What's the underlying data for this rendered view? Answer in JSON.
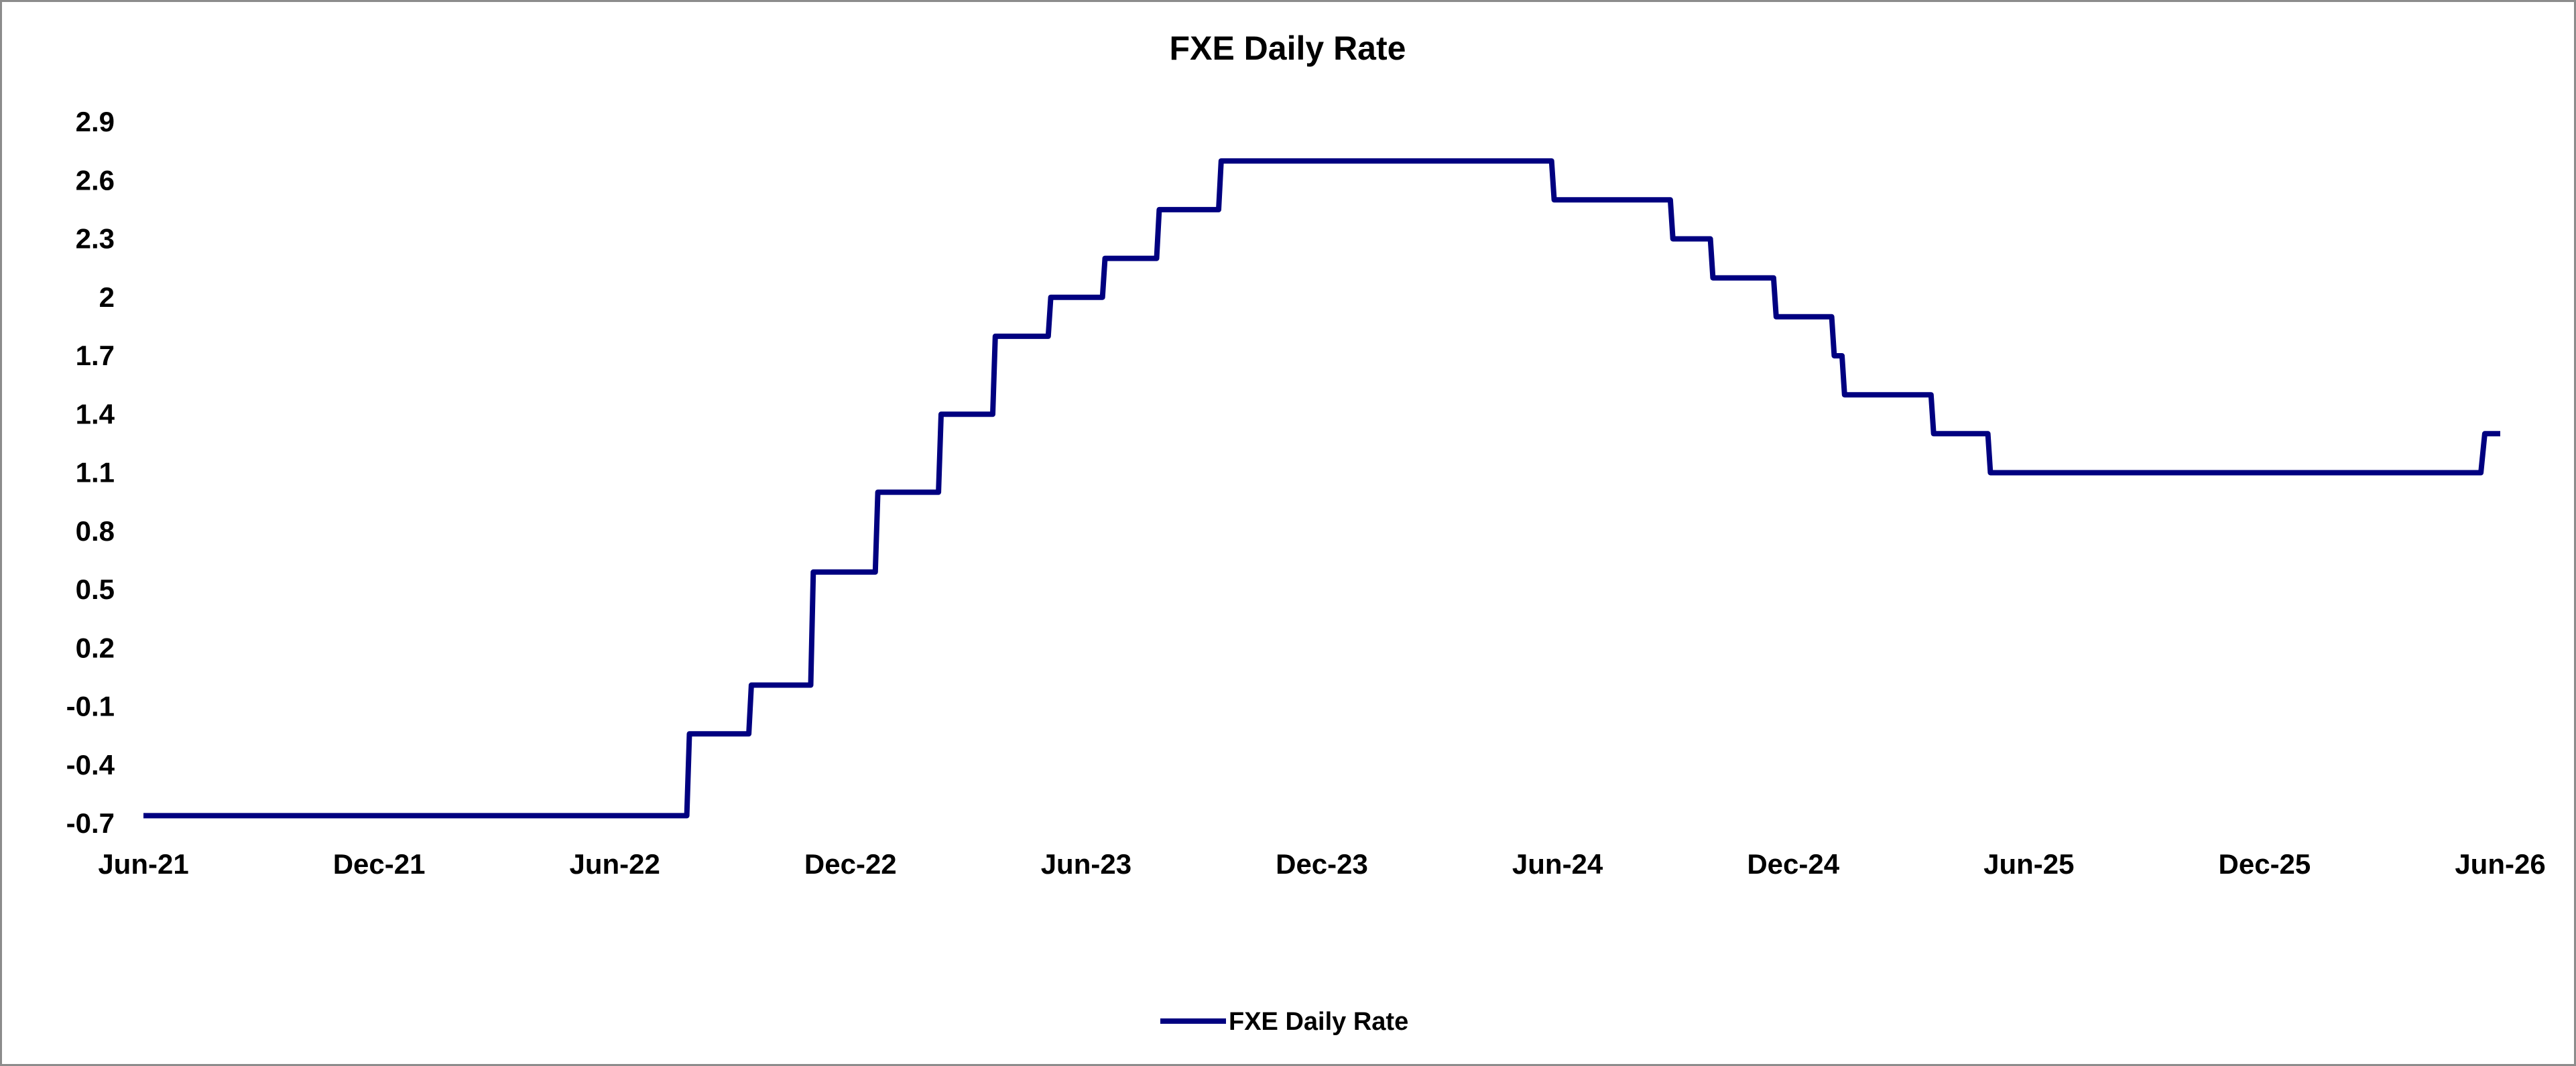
{
  "chart_data": {
    "type": "line",
    "title": "FXE Daily Rate",
    "xlabel": "",
    "ylabel": "",
    "x_tick_labels": [
      "Jun-21",
      "Dec-21",
      "Jun-22",
      "Dec-22",
      "Jun-23",
      "Dec-23",
      "Jun-24",
      "Dec-24",
      "Jun-25",
      "Dec-25",
      "Jun-26"
    ],
    "y_tick_labels": [
      "2.9",
      "2.6",
      "2.3",
      "2",
      "1.7",
      "1.4",
      "1.1",
      "0.8",
      "0.5",
      "0.2",
      "-0.1",
      "-0.4",
      "-0.7"
    ],
    "ylim": [
      -0.7,
      2.9
    ],
    "xlim": [
      "2021-06-01",
      "2026-06-01"
    ],
    "grid": false,
    "legend_position": "bottom",
    "series": [
      {
        "name": "FXE Daily Rate",
        "color": "#000080",
        "points": [
          [
            "2021-06-01",
            -0.66
          ],
          [
            "2022-07-27",
            -0.66
          ],
          [
            "2022-07-29",
            -0.24
          ],
          [
            "2022-09-13",
            -0.24
          ],
          [
            "2022-09-15",
            0.01
          ],
          [
            "2022-10-31",
            0.01
          ],
          [
            "2022-11-02",
            0.59
          ],
          [
            "2022-12-20",
            0.59
          ],
          [
            "2022-12-22",
            1.0
          ],
          [
            "2023-02-07",
            1.0
          ],
          [
            "2023-02-09",
            1.4
          ],
          [
            "2023-03-21",
            1.4
          ],
          [
            "2023-03-23",
            1.8
          ],
          [
            "2023-05-03",
            1.8
          ],
          [
            "2023-05-05",
            2.0
          ],
          [
            "2023-06-14",
            2.0
          ],
          [
            "2023-06-16",
            2.2
          ],
          [
            "2023-07-26",
            2.2
          ],
          [
            "2023-07-28",
            2.45
          ],
          [
            "2023-09-12",
            2.45
          ],
          [
            "2023-09-14",
            2.7
          ],
          [
            "2024-05-27",
            2.7
          ],
          [
            "2024-05-29",
            2.5
          ],
          [
            "2024-08-27",
            2.5
          ],
          [
            "2024-08-29",
            2.3
          ],
          [
            "2024-09-27",
            2.3
          ],
          [
            "2024-09-29",
            2.1
          ],
          [
            "2024-11-15",
            2.1
          ],
          [
            "2024-11-17",
            1.9
          ],
          [
            "2024-12-30",
            1.9
          ],
          [
            "2025-01-01",
            1.7
          ],
          [
            "2025-01-07",
            1.7
          ],
          [
            "2025-01-09",
            1.5
          ],
          [
            "2025-03-17",
            1.5
          ],
          [
            "2025-03-19",
            1.3
          ],
          [
            "2025-04-30",
            1.3
          ],
          [
            "2025-05-02",
            1.1
          ],
          [
            "2026-05-17",
            1.1
          ],
          [
            "2026-05-20",
            1.3
          ],
          [
            "2026-06-01",
            1.3
          ]
        ]
      }
    ]
  }
}
